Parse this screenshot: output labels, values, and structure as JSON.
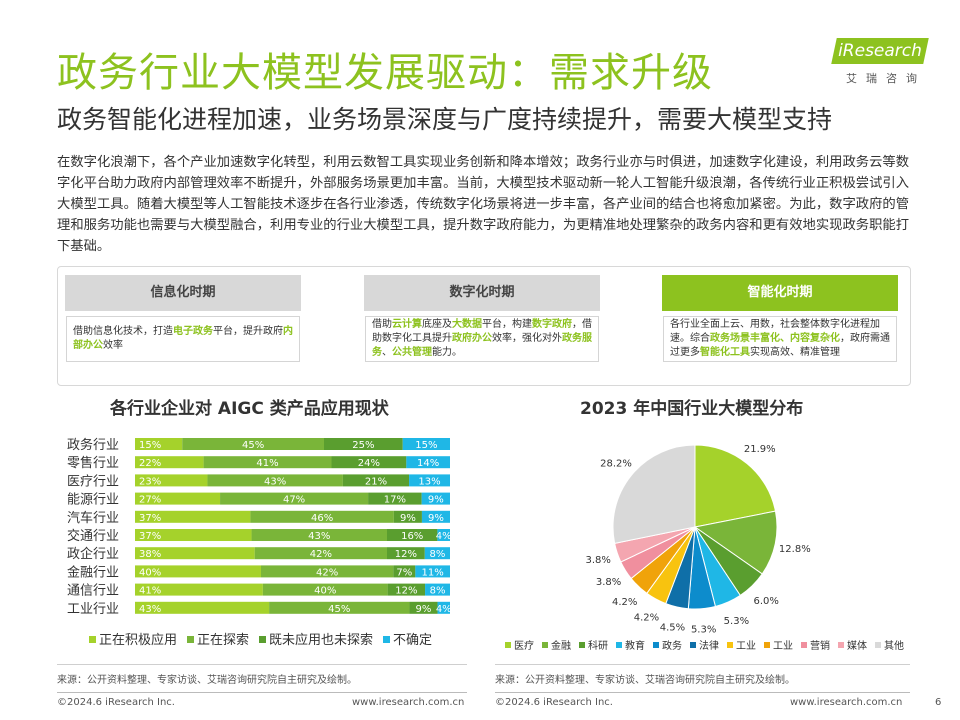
{
  "header": {
    "title": "政务行业大模型发展驱动：需求升级",
    "subtitle": "政务智能化进程加速，业务场景深度与广度持续提升，需要大模型支持",
    "logo_text": "iResearch",
    "logo_sub": "艾瑞咨询"
  },
  "intro": "在数字化浪潮下，各个产业加速数字化转型，利用云数智工具实现业务创新和降本增效；政务行业亦与时俱进，加速数字化建设，利用政务云等数字化平台助力政府内部管理效率不断提升，外部服务场景更加丰富。当前，大模型技术驱动新一轮人工智能升级浪潮，各传统行业正积极尝试引入大模型工具。随着大模型等人工智能技术逐步在各行业渗透，传统数字化场景将进一步丰富，各产业间的结合也将愈加紧密。为此，数字政府的管理和服务功能也需要与大模型融合，利用专业的行业大模型工具，提升数字政府能力，为更精准地处理繁杂的政务内容和更有效地实现政务职能打下基础。",
  "stages": [
    {
      "title": "信息化时期",
      "segments": [
        {
          "t": "借助信息化技术，打造",
          "h": false
        },
        {
          "t": "电子政务",
          "h": true
        },
        {
          "t": "平台，提升政府",
          "h": false
        },
        {
          "t": "内部办公",
          "h": true
        },
        {
          "t": "效率",
          "h": false
        }
      ]
    },
    {
      "title": "数字化时期",
      "segments": [
        {
          "t": "借助",
          "h": false
        },
        {
          "t": "云计算",
          "h": true
        },
        {
          "t": "底座及",
          "h": false
        },
        {
          "t": "大数据",
          "h": true
        },
        {
          "t": "平台，构建",
          "h": false
        },
        {
          "t": "数字政府",
          "h": true
        },
        {
          "t": "，借助数字化工具提升",
          "h": false
        },
        {
          "t": "政府办公",
          "h": true
        },
        {
          "t": "效率，强化对外",
          "h": false
        },
        {
          "t": "政务服务",
          "h": true
        },
        {
          "t": "、",
          "h": false
        },
        {
          "t": "公共管理",
          "h": true
        },
        {
          "t": "能力。",
          "h": false
        }
      ]
    },
    {
      "title": "智能化时期",
      "segments": [
        {
          "t": "各行业全面上云、用数，社会整体数字化进程加速。综合",
          "h": false
        },
        {
          "t": "政务场景丰富化、内容复杂化",
          "h": true
        },
        {
          "t": "，政府需通过更多",
          "h": false
        },
        {
          "t": "智能化工具",
          "h": true
        },
        {
          "t": "实现高效、精准管理",
          "h": false
        }
      ]
    }
  ],
  "left_chart_title": "各行业企业对 AIGC 类产品应用现状",
  "right_chart_title": "2023 年中国行业大模型分布",
  "chart_data": [
    {
      "type": "bar",
      "stacked": true,
      "orientation": "horizontal",
      "title": "各行业企业对 AIGC 类产品应用现状",
      "categories": [
        "政务行业",
        "零售行业",
        "医疗行业",
        "能源行业",
        "汽车行业",
        "交通行业",
        "政企行业",
        "金融行业",
        "通信行业",
        "工业行业"
      ],
      "series": [
        {
          "name": "正在积极应用",
          "color": "#a5d22b",
          "values": [
            15,
            22,
            23,
            27,
            37,
            37,
            38,
            40,
            41,
            43
          ]
        },
        {
          "name": "正在探索",
          "color": "#7ab539",
          "values": [
            45,
            41,
            43,
            47,
            46,
            43,
            42,
            42,
            40,
            45
          ]
        },
        {
          "name": "既未应用也未探索",
          "color": "#5a9e2f",
          "values": [
            25,
            24,
            21,
            17,
            9,
            16,
            12,
            7,
            12,
            9
          ]
        },
        {
          "name": "不确定",
          "color": "#1fb7e6",
          "values": [
            15,
            14,
            13,
            9,
            9,
            4,
            8,
            11,
            8,
            4
          ]
        }
      ],
      "value_suffix": "%",
      "legend_position": "bottom"
    },
    {
      "type": "pie",
      "title": "2023 年中国行业大模型分布",
      "labels": [
        "医疗",
        "金融",
        "科研",
        "教育",
        "政务",
        "法律",
        "工业",
        "工业",
        "营销",
        "媒体",
        "其他"
      ],
      "values": [
        21.9,
        12.8,
        6.0,
        5.3,
        5.3,
        4.5,
        4.2,
        4.2,
        3.8,
        3.8,
        28.2
      ],
      "colors": [
        "#a5d22b",
        "#7ab539",
        "#5a9e2f",
        "#1fb7e6",
        "#0d8ccc",
        "#0f6fa8",
        "#f8c30f",
        "#f0a30a",
        "#f08f9e",
        "#f4a6b0",
        "#d9d9d9"
      ],
      "value_suffix": "%",
      "legend_position": "bottom"
    }
  ],
  "footer": {
    "left_source": "来源：公开资料整理、专家访谈、艾瑞咨询研究院自主研究及绘制。",
    "right_source": "来源：公开资料整理、专家访谈、艾瑞咨询研究院自主研究及绘制。",
    "left_copyright": "©2024.6 iResearch Inc.",
    "left_url": "www.iresearch.com.cn",
    "right_copyright": "©2024.6 iResearch Inc.",
    "right_url": "www.iresearch.com.cn",
    "page_number": "6"
  }
}
